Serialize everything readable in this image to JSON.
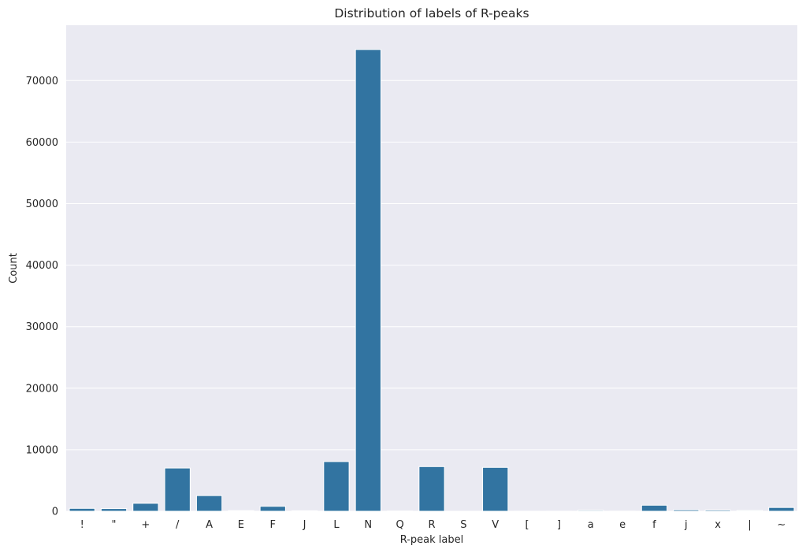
{
  "chart_data": {
    "type": "bar",
    "title": "Distribution of labels of R-peaks",
    "xlabel": "R-peak label",
    "ylabel": "Count",
    "categories": [
      "!",
      "\"",
      "+",
      "/",
      "A",
      "E",
      "F",
      "J",
      "L",
      "N",
      "Q",
      "R",
      "S",
      "V",
      "[",
      "]",
      "a",
      "e",
      "f",
      "j",
      "x",
      "|",
      "~"
    ],
    "values": [
      472,
      437,
      1291,
      7028,
      2546,
      106,
      803,
      83,
      8075,
      75052,
      33,
      7259,
      2,
      7130,
      6,
      6,
      150,
      16,
      982,
      229,
      193,
      132,
      616
    ],
    "ylim": [
      0,
      79000
    ],
    "yticks": [
      0,
      10000,
      20000,
      30000,
      40000,
      50000,
      60000,
      70000
    ],
    "grid": true,
    "bar_color": "#3274a1",
    "background_color": "#eaeaf2",
    "grid_color": "#ffffff"
  }
}
